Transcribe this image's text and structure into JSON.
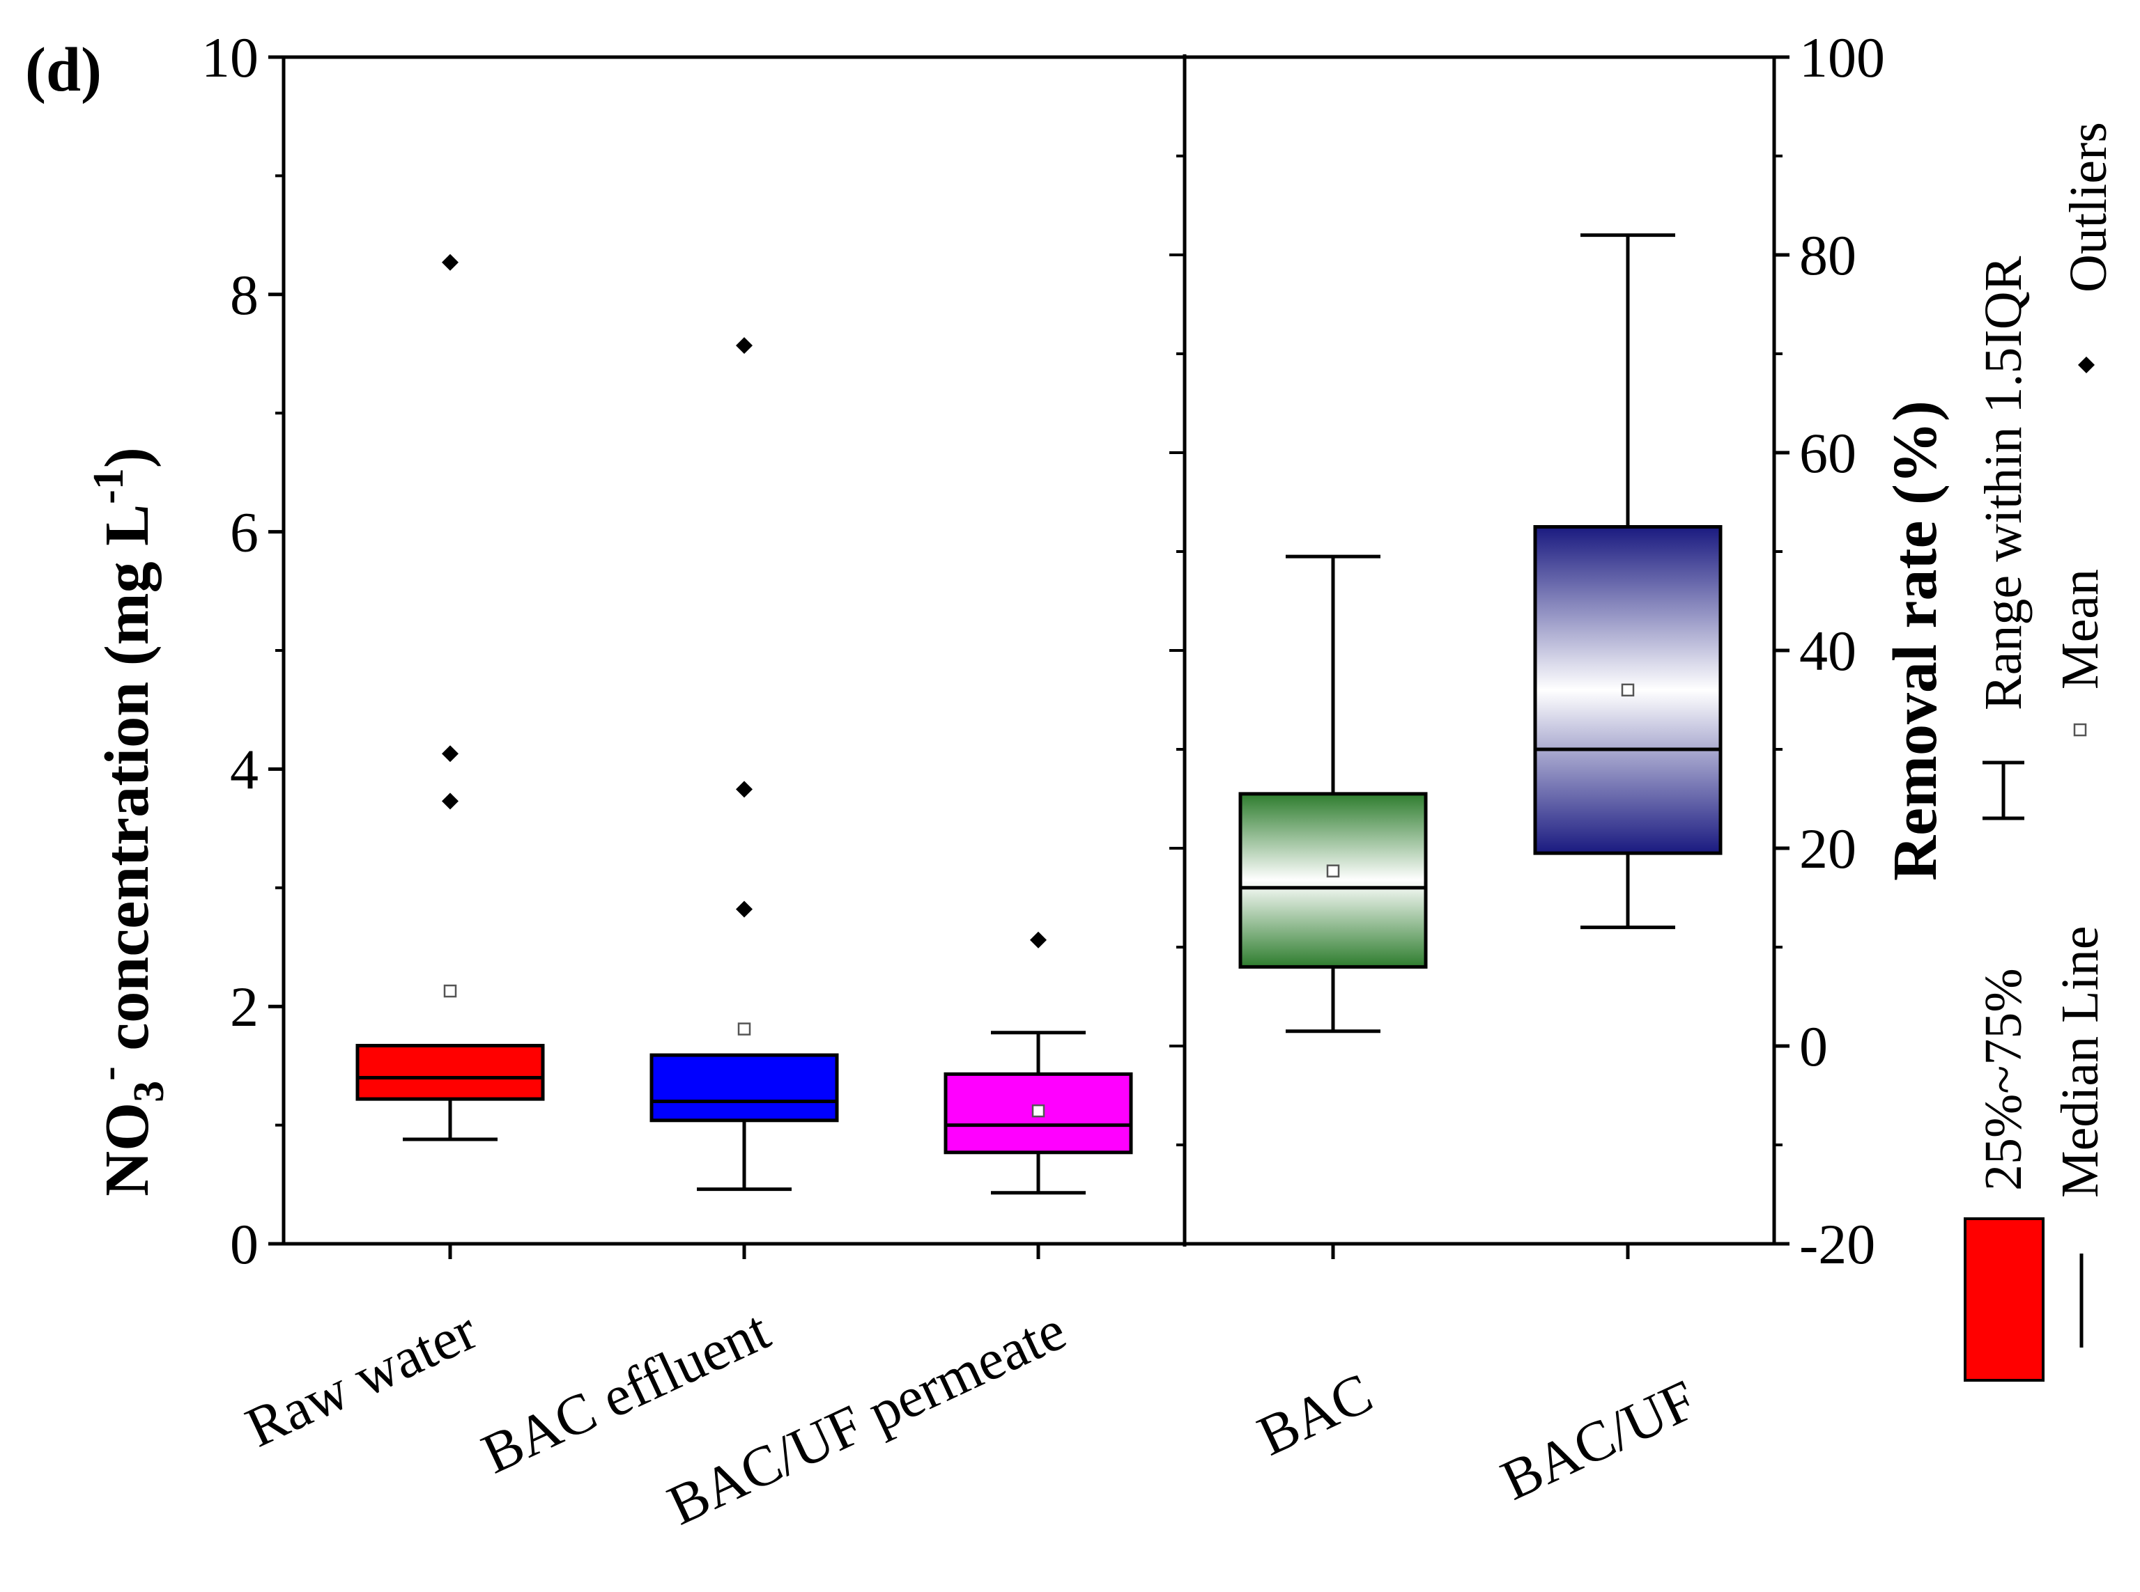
{
  "panel_label": "(d)",
  "legend": {
    "box_label": "25%~75%",
    "median_label": "Median Line",
    "whisker_label": "Range within 1.5IQR",
    "mean_label": "Mean",
    "outlier_label": "Outliers"
  },
  "colors": {
    "raw_water": "#ff0000",
    "bac_effluent": "#0000ff",
    "bac_uf_permeate": "#ff00ff",
    "bac": "#2e7d2e",
    "bac_uf": "#1a1a80"
  },
  "chart_data": [
    {
      "type": "box",
      "ylabel_parts": [
        "NO",
        "3",
        "-",
        " concentration (mg L",
        "-1",
        ")"
      ],
      "ylim": [
        0,
        10
      ],
      "yticks": [
        0,
        2,
        4,
        6,
        8,
        10
      ],
      "categories": [
        "Raw water",
        "BAC effluent",
        "BAC/UF permeate"
      ],
      "boxes": [
        {
          "name": "Raw water",
          "whisker_low": 0.88,
          "q1": 1.22,
          "median": 1.4,
          "q3": 1.67,
          "whisker_high": 1.67,
          "mean": 2.13,
          "outliers": [
            3.73,
            4.13,
            8.27
          ],
          "color": "#ff0000"
        },
        {
          "name": "BAC effluent",
          "whisker_low": 0.46,
          "q1": 1.04,
          "median": 1.2,
          "q3": 1.59,
          "whisker_high": 1.59,
          "mean": 1.81,
          "outliers": [
            2.82,
            3.83,
            7.57
          ],
          "color": "#0000ff"
        },
        {
          "name": "BAC/UF permeate",
          "whisker_low": 0.43,
          "q1": 0.77,
          "median": 1.0,
          "q3": 1.43,
          "whisker_high": 1.78,
          "mean": 1.12,
          "outliers": [
            2.56
          ],
          "color": "#ff00ff"
        }
      ]
    },
    {
      "type": "box",
      "ylabel": "Removal rate (%)",
      "ylim": [
        -20,
        100
      ],
      "yticks": [
        -20,
        0,
        20,
        40,
        60,
        80,
        100
      ],
      "categories": [
        "BAC",
        "BAC/UF"
      ],
      "boxes": [
        {
          "name": "BAC",
          "whisker_low": 1.5,
          "q1": 8,
          "median": 16,
          "q3": 25.5,
          "whisker_high": 49.5,
          "mean": 17.7,
          "outliers": [],
          "color": "#2e7d2e"
        },
        {
          "name": "BAC/UF",
          "whisker_low": 12,
          "q1": 19.5,
          "median": 30,
          "q3": 52.5,
          "whisker_high": 82,
          "mean": 36,
          "outliers": [],
          "color": "#1a1a80"
        }
      ]
    }
  ]
}
